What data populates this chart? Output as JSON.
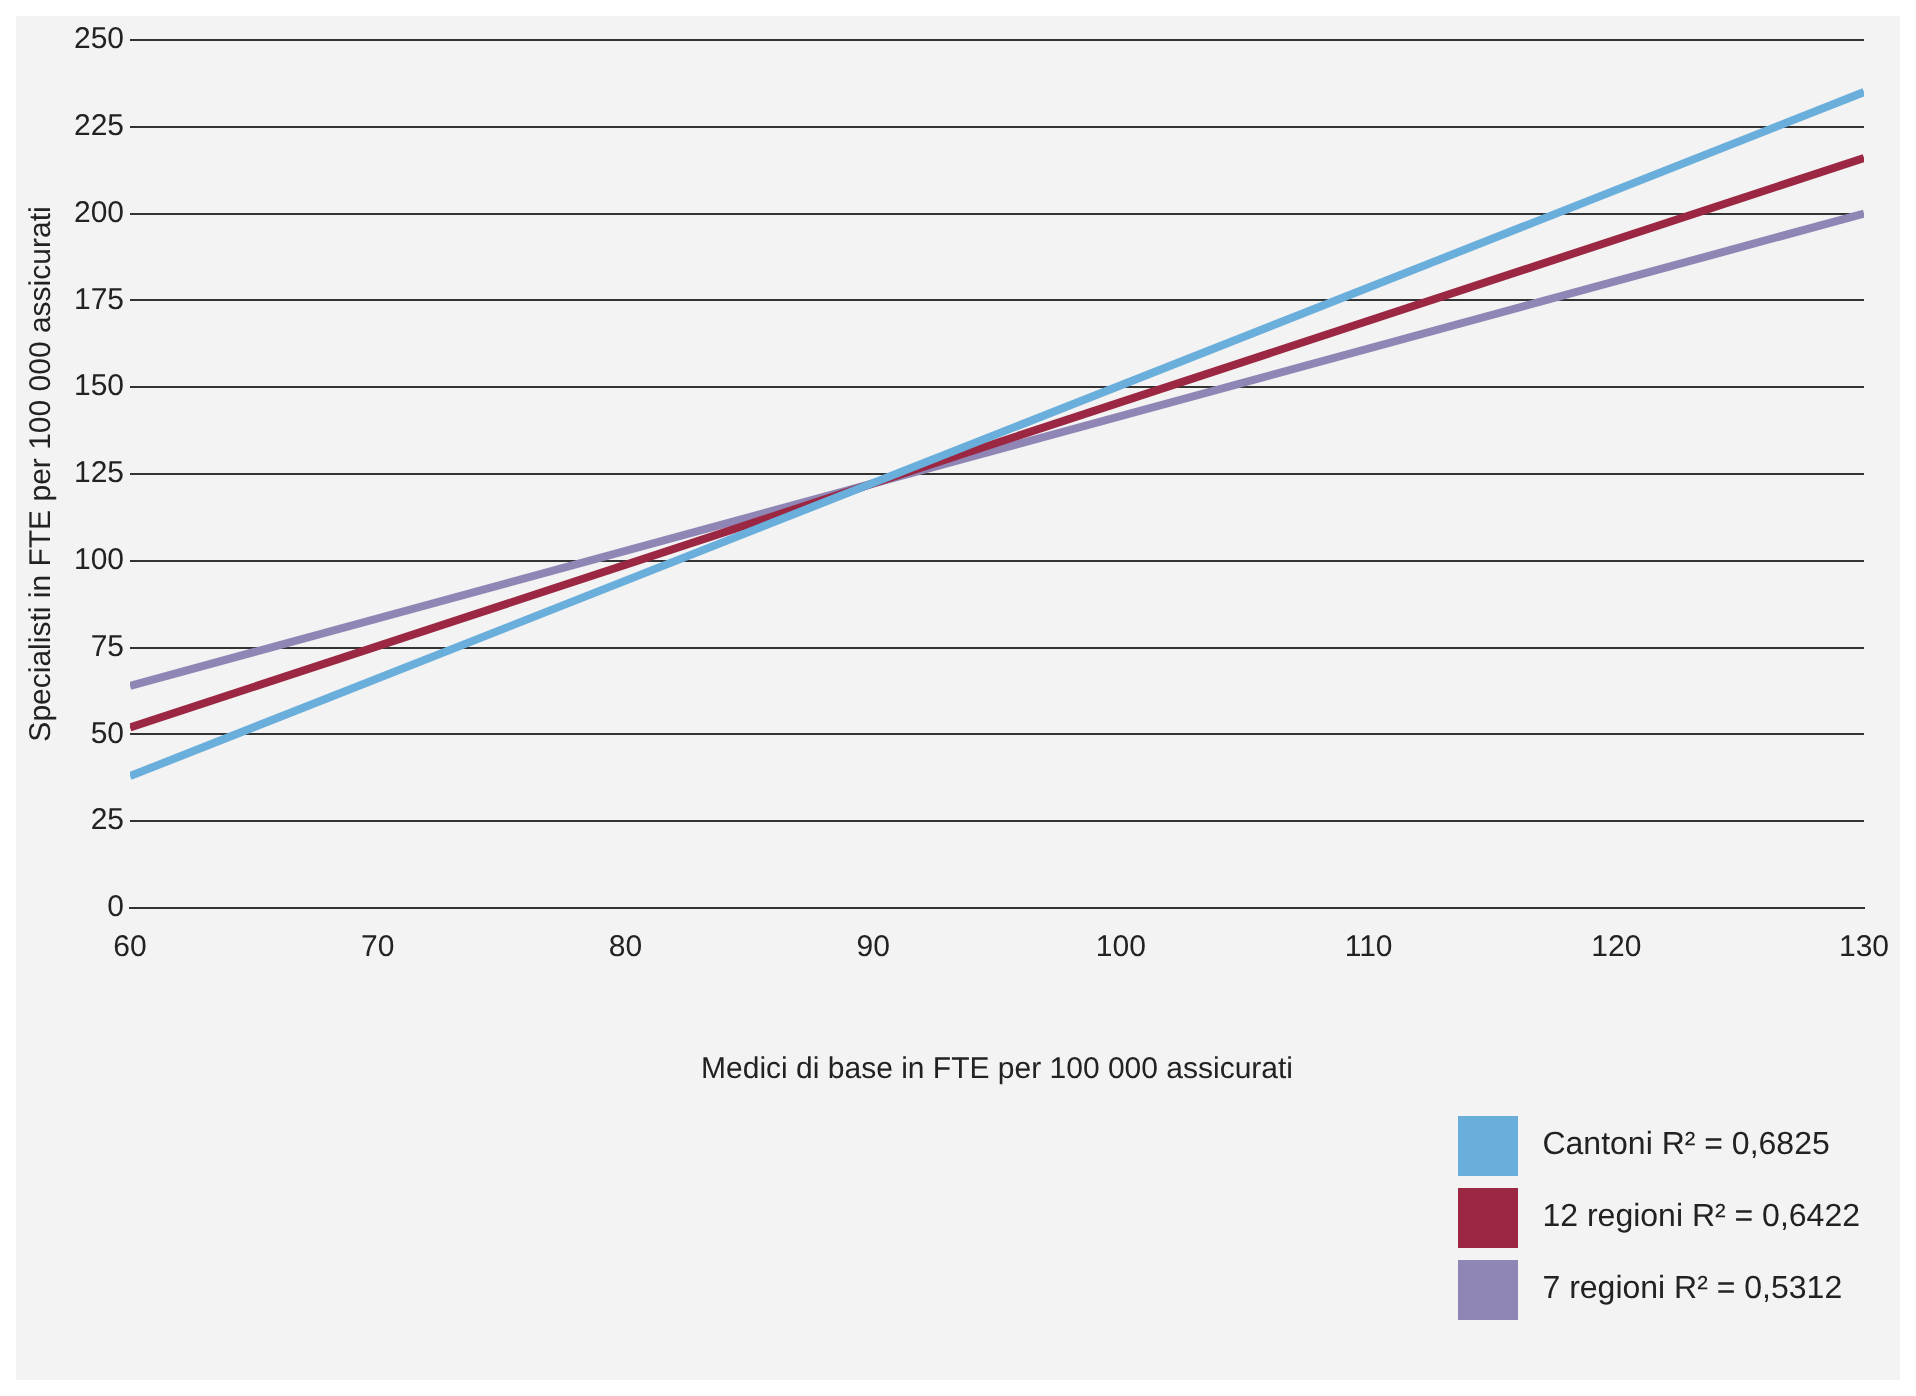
{
  "chart_data": {
    "type": "line",
    "xlabel": "Medici di base in FTE per 100 000 assicurati",
    "ylabel": "Specialisti in FTE per 100 000 assicurati",
    "x": [
      60,
      130
    ],
    "series": [
      {
        "name": "Cantoni R² = 0,6825",
        "color": "#6aaedb",
        "values": [
          38,
          235
        ]
      },
      {
        "name": "12 regioni R² = 0,6422",
        "color": "#9b2743",
        "values": [
          52,
          216
        ]
      },
      {
        "name": "7 regioni R² = 0,5312",
        "color": "#8f86b5",
        "values": [
          64,
          200
        ]
      }
    ],
    "xlim": [
      60,
      130
    ],
    "xticks": [
      60,
      70,
      80,
      90,
      100,
      110,
      120,
      130
    ],
    "ylim": [
      0,
      250
    ],
    "yticks": [
      0,
      25,
      50,
      75,
      100,
      125,
      150,
      175,
      200,
      225,
      250
    ],
    "grid": "y",
    "legend": "bottom right",
    "marker": "none",
    "line_style": "solid"
  }
}
